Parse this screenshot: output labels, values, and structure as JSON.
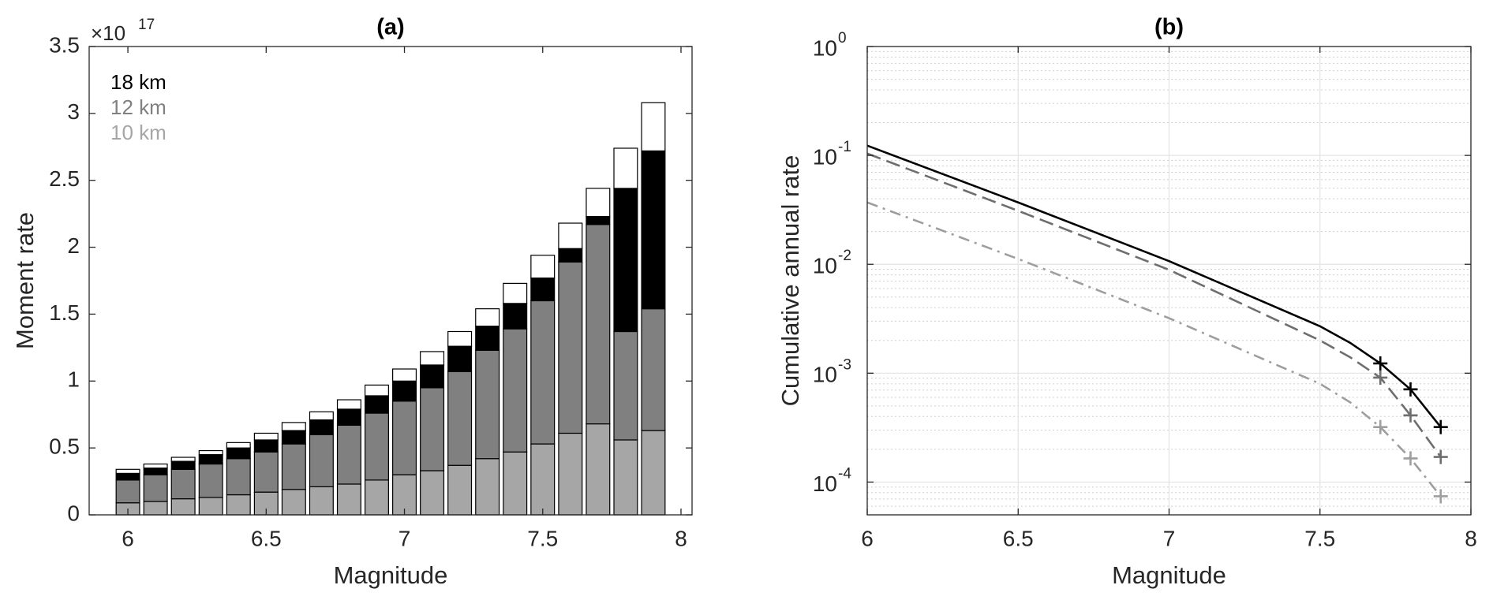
{
  "chart_data": [
    {
      "type": "bar",
      "stacked": true,
      "title": "(a)",
      "x_label": "Magnitude",
      "y_label": "Moment rate",
      "multiplier": {
        "label": "×10",
        "exponent": "17"
      },
      "x": [
        6.0,
        6.1,
        6.2,
        6.3,
        6.4,
        6.5,
        6.6,
        6.7,
        6.8,
        6.9,
        7.0,
        7.1,
        7.2,
        7.3,
        7.4,
        7.5,
        7.6,
        7.7,
        7.8,
        7.9
      ],
      "series": [
        {
          "name": "10 km",
          "color": "#a6a6a6",
          "values": [
            0.09,
            0.1,
            0.12,
            0.13,
            0.15,
            0.17,
            0.19,
            0.21,
            0.23,
            0.26,
            0.3,
            0.33,
            0.37,
            0.42,
            0.47,
            0.53,
            0.61,
            0.68,
            0.56,
            0.63
          ]
        },
        {
          "name": "12 km",
          "color": "#808080",
          "values": [
            0.17,
            0.2,
            0.22,
            0.25,
            0.27,
            0.3,
            0.34,
            0.39,
            0.44,
            0.5,
            0.55,
            0.62,
            0.7,
            0.81,
            0.92,
            1.07,
            1.28,
            1.49,
            0.81,
            0.91
          ]
        },
        {
          "name": "18 km",
          "color": "#000000",
          "values": [
            0.05,
            0.05,
            0.06,
            0.07,
            0.08,
            0.09,
            0.1,
            0.11,
            0.12,
            0.13,
            0.15,
            0.17,
            0.19,
            0.18,
            0.19,
            0.17,
            0.1,
            0.06,
            1.07,
            1.18
          ]
        },
        {
          "color": "#ffffff",
          "values": [
            0.03,
            0.03,
            0.03,
            0.03,
            0.04,
            0.05,
            0.06,
            0.06,
            0.07,
            0.08,
            0.09,
            0.1,
            0.11,
            0.13,
            0.15,
            0.17,
            0.19,
            0.21,
            0.3,
            0.36
          ]
        }
      ],
      "xlim": [
        5.86,
        8.04
      ],
      "xticks": [
        6,
        6.5,
        7,
        7.5,
        8
      ],
      "ylim": [
        0,
        3.5
      ],
      "yticks": [
        0,
        0.5,
        1,
        1.5,
        2,
        2.5,
        3,
        3.5
      ],
      "grid": false,
      "legend": "upper left"
    },
    {
      "type": "line",
      "title": "(b)",
      "x_label": "Magnitude",
      "y_label": "Cumulative annual rate",
      "x": [
        6.0,
        6.5,
        7.0,
        7.5,
        7.6,
        7.7,
        7.8,
        7.9
      ],
      "series": [
        {
          "color": "#000000",
          "dash": "solid",
          "markers": [
            null,
            null,
            null,
            null,
            null,
            "+",
            "+",
            "+"
          ],
          "values": [
            0.123,
            0.037,
            0.0107,
            0.0027,
            0.0019,
            0.00123,
            0.00071,
            0.00032
          ]
        },
        {
          "color": "#6e6e6e",
          "dash": "dashed",
          "markers": [
            null,
            null,
            null,
            null,
            null,
            "+",
            "+",
            "+"
          ],
          "values": [
            0.104,
            0.031,
            0.0089,
            0.002,
            0.0014,
            0.00091,
            0.00041,
            0.00017
          ]
        },
        {
          "color": "#9e9e9e",
          "dash": "dashdot",
          "markers": [
            null,
            null,
            null,
            null,
            null,
            "+",
            "+",
            "+"
          ],
          "values": [
            0.037,
            0.0112,
            0.0032,
            0.0008,
            0.00054,
            0.00032,
            0.000165,
            7.4e-05
          ]
        }
      ],
      "xlim": [
        6,
        8
      ],
      "xticks": [
        6,
        6.5,
        7,
        7.5,
        8
      ],
      "log_y": true,
      "ylim": [
        5e-05,
        1
      ],
      "yticks": [
        {
          "value": 0.0001,
          "label": "10",
          "exponent": "-4"
        },
        {
          "value": 0.001,
          "label": "10",
          "exponent": "-3"
        },
        {
          "value": 0.01,
          "label": "10",
          "exponent": "-2"
        },
        {
          "value": 0.1,
          "label": "10",
          "exponent": "-1"
        },
        {
          "value": 1,
          "label": "10",
          "exponent": "0"
        }
      ],
      "minor_yticks": [
        6e-05,
        7e-05,
        8e-05,
        9e-05,
        0.0002,
        0.0003,
        0.0004,
        0.0005,
        0.0006,
        0.0007,
        0.0008,
        0.0009,
        0.002,
        0.003,
        0.004,
        0.005,
        0.006,
        0.007,
        0.008,
        0.009,
        0.02,
        0.03,
        0.04,
        0.05,
        0.06,
        0.07,
        0.08,
        0.09,
        0.2,
        0.3,
        0.4,
        0.5,
        0.6,
        0.7,
        0.8,
        0.9
      ],
      "grid": true
    }
  ]
}
